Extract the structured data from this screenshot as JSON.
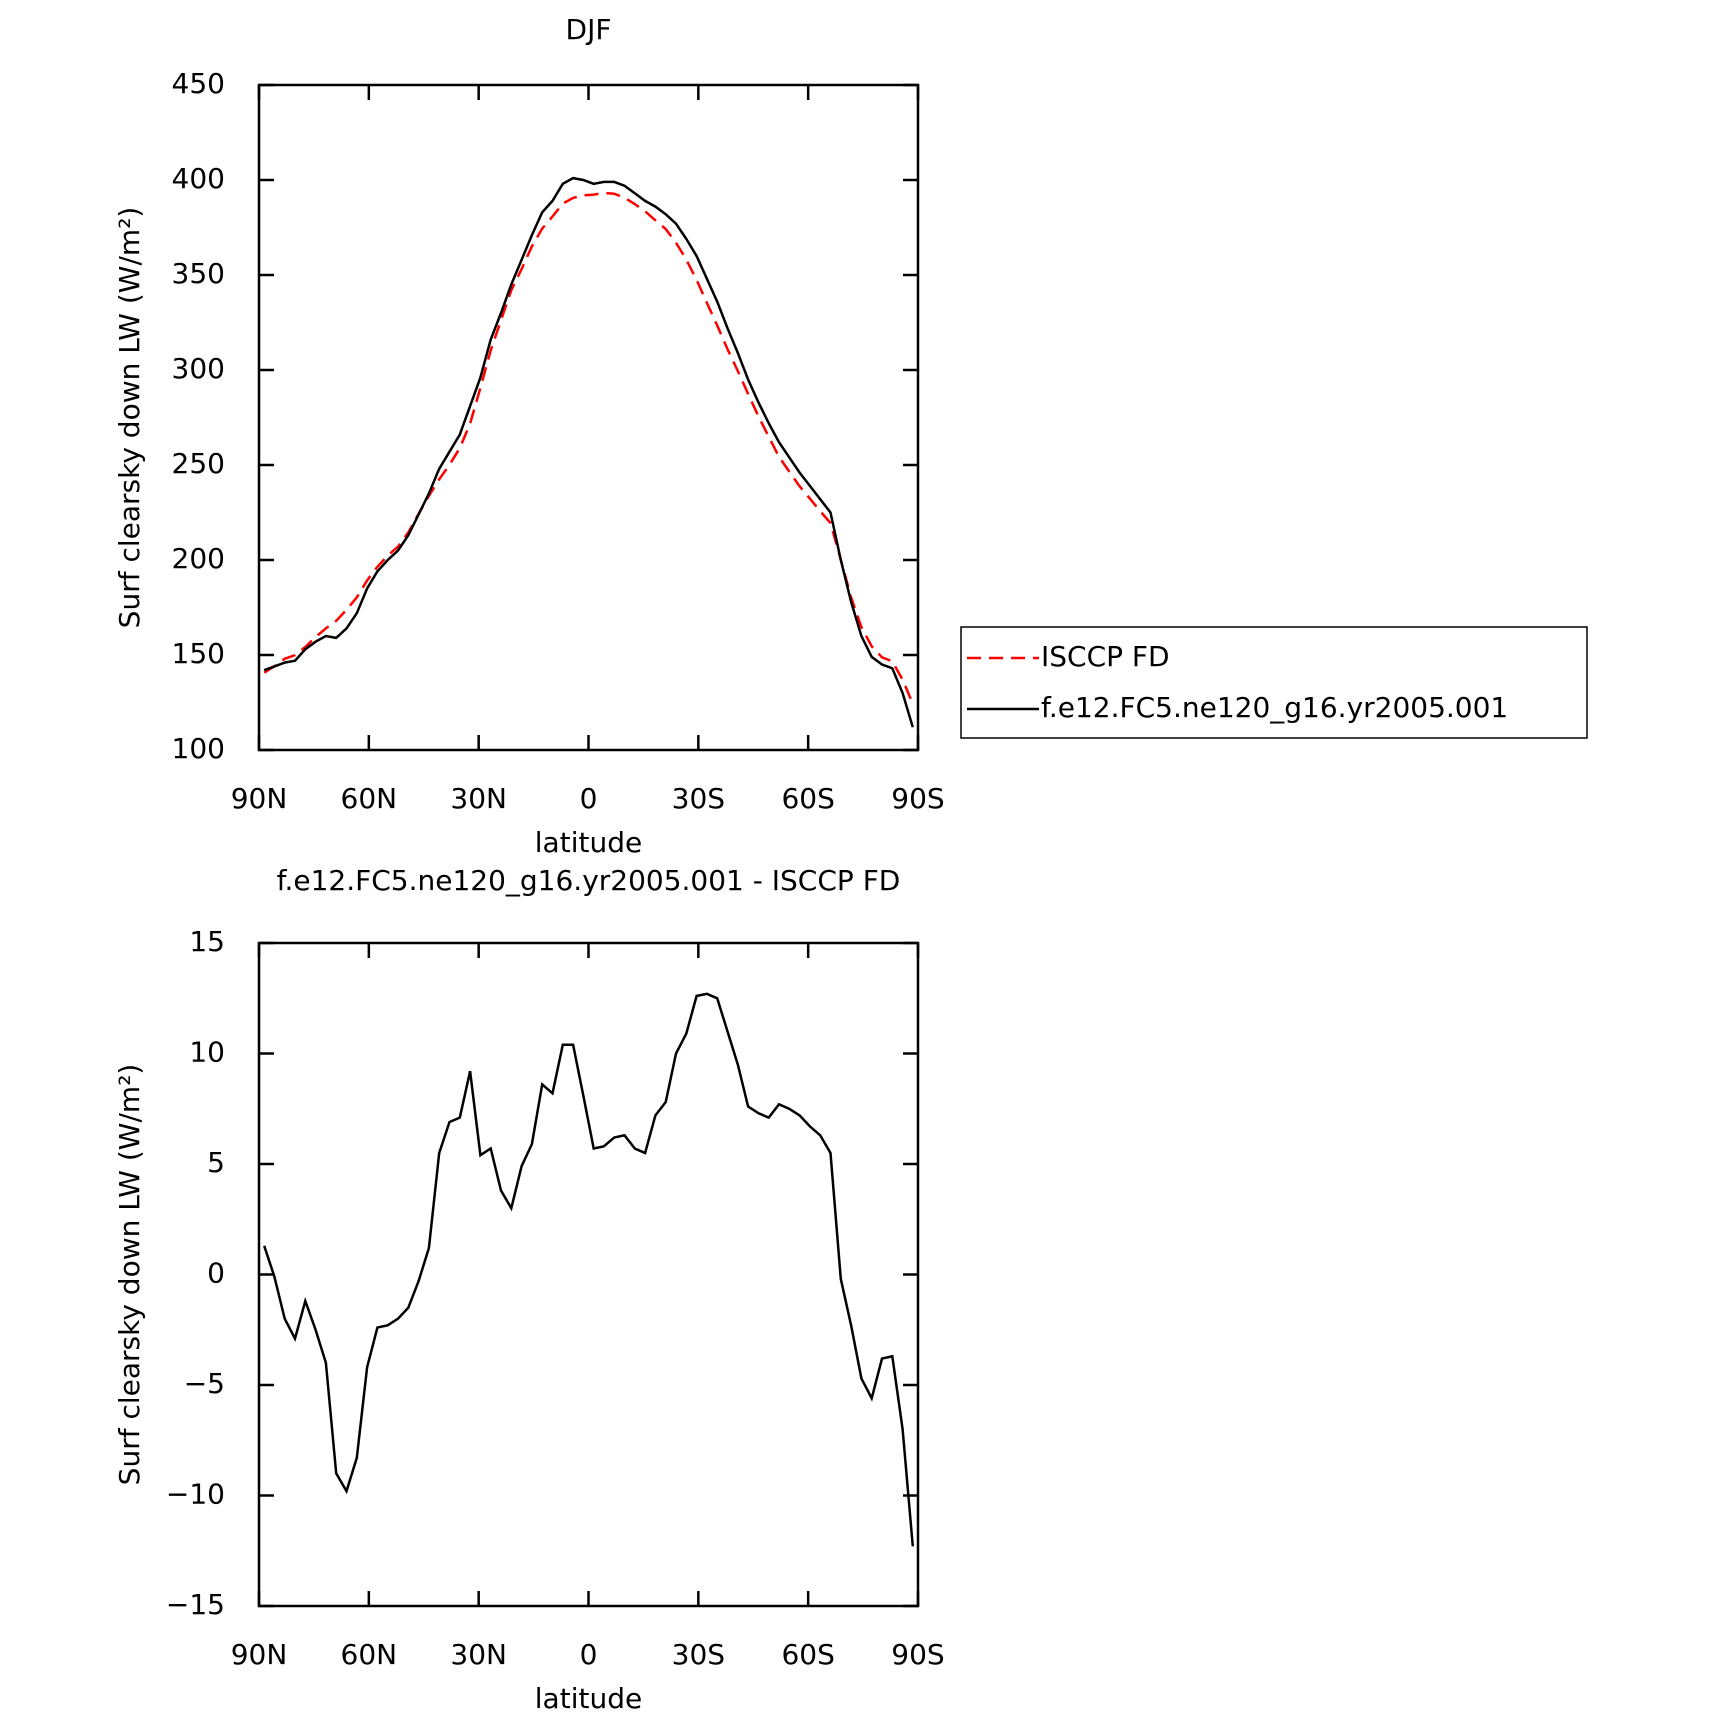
{
  "chart_data": [
    {
      "type": "line",
      "title": "DJF",
      "x_label": "latitude",
      "y_label": "Surf clearsky down LW (W/m²)",
      "x": [
        88.59,
        85.78,
        82.97,
        80.16,
        77.34,
        74.53,
        71.72,
        68.91,
        66.09,
        63.28,
        60.47,
        57.66,
        54.84,
        52.03,
        49.22,
        46.41,
        43.59,
        40.78,
        37.97,
        35.16,
        32.34,
        29.53,
        26.72,
        23.91,
        21.09,
        18.28,
        15.47,
        12.66,
        9.84,
        7.03,
        4.22,
        1.41,
        -1.41,
        -4.22,
        -7.03,
        -9.84,
        -12.66,
        -15.47,
        -18.28,
        -21.09,
        -23.91,
        -26.72,
        -29.53,
        -32.34,
        -35.16,
        -37.97,
        -40.78,
        -43.59,
        -46.41,
        -49.22,
        -52.03,
        -54.84,
        -57.66,
        -60.47,
        -63.28,
        -66.09,
        -68.91,
        -71.72,
        -74.53,
        -77.34,
        -80.16,
        -82.97,
        -85.78,
        -88.59
      ],
      "series": [
        {
          "name": "ISCCP FD",
          "color": "#ff0000",
          "dashed": true,
          "values": [
            140.7,
            144.1,
            148.0,
            149.9,
            154.2,
            159.5,
            164.0,
            168.0,
            173.8,
            180.3,
            189.2,
            196.4,
            202.3,
            207.0,
            214.5,
            224.3,
            233.8,
            242.5,
            250.1,
            258.9,
            271.8,
            290.6,
            310.3,
            326.2,
            342.0,
            353.1,
            365.1,
            374.4,
            380.8,
            387.6,
            390.6,
            391.9,
            392.3,
            393.2,
            392.8,
            390.7,
            387.3,
            383.5,
            378.8,
            374.2,
            367.0,
            358.1,
            347.4,
            335.3,
            323.5,
            311.0,
            299.5,
            287.4,
            275.7,
            264.9,
            254.3,
            246.5,
            238.8,
            232.3,
            225.7,
            219.5,
            200.2,
            180.3,
            164.7,
            154.6,
            148.8,
            146.7,
            137.0,
            124.3
          ]
        },
        {
          "name": "f.e12.FC5.ne120_g16.yr2005.001",
          "color": "#000000",
          "dashed": false,
          "values": [
            142,
            144,
            146,
            147,
            153,
            157,
            160,
            159,
            164,
            172,
            185,
            194,
            200,
            205,
            213,
            224,
            235,
            248,
            257,
            266,
            281,
            296,
            316,
            330,
            345,
            358,
            371,
            383,
            389,
            398,
            401,
            400,
            398,
            399,
            399,
            397,
            393,
            389,
            386,
            382,
            377,
            369,
            360,
            348,
            336,
            322,
            309,
            295,
            283,
            272,
            262,
            254,
            246,
            239,
            232,
            225,
            200,
            178,
            160,
            149,
            145,
            143,
            130,
            112
          ]
        }
      ],
      "xlim": [
        90,
        -90
      ],
      "xticks": [
        {
          "value": 90,
          "label": "90N"
        },
        {
          "value": 60,
          "label": "60N"
        },
        {
          "value": 30,
          "label": "30N"
        },
        0,
        {
          "value": -30,
          "label": "30S"
        },
        {
          "value": -60,
          "label": "60S"
        },
        {
          "value": -90,
          "label": "90S"
        }
      ],
      "ylim": [
        100,
        450
      ],
      "yticks": [
        100,
        150,
        200,
        250,
        300,
        350,
        400,
        450
      ],
      "legend": "right"
    },
    {
      "type": "line",
      "title": "f.e12.FC5.ne120_g16.yr2005.001 - ISCCP FD",
      "x_label": "latitude",
      "y_label": "Surf clearsky down LW (W/m²)",
      "x": [
        88.59,
        85.78,
        82.97,
        80.16,
        77.34,
        74.53,
        71.72,
        68.91,
        66.09,
        63.28,
        60.47,
        57.66,
        54.84,
        52.03,
        49.22,
        46.41,
        43.59,
        40.78,
        37.97,
        35.16,
        32.34,
        29.53,
        26.72,
        23.91,
        21.09,
        18.28,
        15.47,
        12.66,
        9.84,
        7.03,
        4.22,
        1.41,
        -1.41,
        -4.22,
        -7.03,
        -9.84,
        -12.66,
        -15.47,
        -18.28,
        -21.09,
        -23.91,
        -26.72,
        -29.53,
        -32.34,
        -35.16,
        -37.97,
        -40.78,
        -43.59,
        -46.41,
        -49.22,
        -52.03,
        -54.84,
        -57.66,
        -60.47,
        -63.28,
        -66.09,
        -68.91,
        -71.72,
        -74.53,
        -77.34,
        -80.16,
        -82.97,
        -85.78,
        -88.59
      ],
      "series": [
        {
          "color": "#000000",
          "dashed": false,
          "values": [
            1.3,
            -0.1,
            -2.0,
            -2.9,
            -1.2,
            -2.5,
            -4.0,
            -9.0,
            -9.8,
            -8.3,
            -4.2,
            -2.4,
            -2.3,
            -2.0,
            -1.5,
            -0.3,
            1.2,
            5.5,
            6.9,
            7.1,
            9.2,
            5.4,
            5.7,
            3.8,
            3.0,
            4.9,
            5.9,
            8.6,
            8.2,
            10.4,
            10.4,
            8.1,
            5.7,
            5.8,
            6.2,
            6.3,
            5.7,
            5.5,
            7.2,
            7.8,
            10.0,
            10.9,
            12.6,
            12.7,
            12.5,
            11.0,
            9.5,
            7.6,
            7.3,
            7.1,
            7.7,
            7.5,
            7.2,
            6.7,
            6.3,
            5.5,
            -0.2,
            -2.3,
            -4.7,
            -5.6,
            -3.8,
            -3.7,
            -7.0,
            -12.3
          ]
        }
      ],
      "xlim": [
        90,
        -90
      ],
      "xticks": [
        {
          "value": 90,
          "label": "90N"
        },
        {
          "value": 60,
          "label": "60N"
        },
        {
          "value": 30,
          "label": "30N"
        },
        0,
        {
          "value": -30,
          "label": "30S"
        },
        {
          "value": -60,
          "label": "60S"
        },
        {
          "value": -90,
          "label": "90S"
        }
      ],
      "ylim": [
        -15,
        15
      ],
      "yticks": [
        {
          "value": -15,
          "label": "−15"
        },
        {
          "value": -10,
          "label": "−10"
        },
        {
          "value": -5,
          "label": "−5"
        },
        0,
        5,
        10,
        15
      ]
    }
  ]
}
